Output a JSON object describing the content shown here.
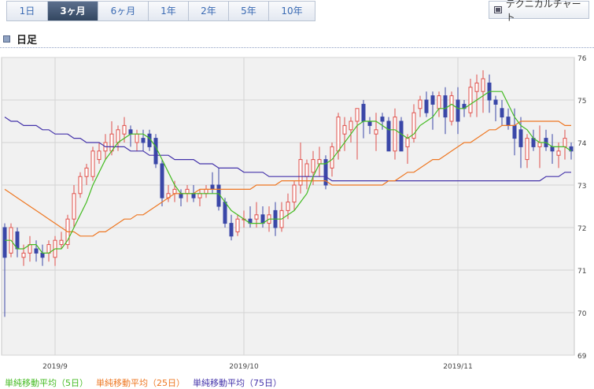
{
  "tabs": [
    {
      "label": "1日",
      "active": false
    },
    {
      "label": "3ヶ月",
      "active": true
    },
    {
      "label": "6ヶ月",
      "active": false
    },
    {
      "label": "1年",
      "active": false
    },
    {
      "label": "2年",
      "active": false
    },
    {
      "label": "5年",
      "active": false
    },
    {
      "label": "10年",
      "active": false
    }
  ],
  "technical_chart_label": "テクニカルチャート",
  "period_label": "日足",
  "legend": [
    {
      "label": "単純移動平均（5日）",
      "color": "#44bb22"
    },
    {
      "label": "単純移動平均（25日）",
      "color": "#ee7722"
    },
    {
      "label": "単純移動平均（75日）",
      "color": "#4433aa"
    }
  ],
  "colors": {
    "up": "#e0504a",
    "down": "#3a47a8",
    "plot_bg": "#f1f1f1",
    "grid": "#d4d4d4"
  },
  "chart_data": {
    "type": "candlestick",
    "y_axis": {
      "min": 69,
      "max": 76,
      "ticks": [
        76,
        75,
        74,
        73,
        72,
        71,
        70,
        69
      ],
      "side": "right"
    },
    "x_labels": [
      {
        "index": 8,
        "label": "2019/9"
      },
      {
        "index": 38,
        "label": "2019/10"
      },
      {
        "index": 72,
        "label": "2019/11"
      }
    ],
    "candles": [
      [
        72.0,
        72.1,
        69.9,
        71.3
      ],
      [
        71.4,
        72.1,
        71.3,
        72.0
      ],
      [
        71.9,
        72.0,
        71.3,
        71.5
      ],
      [
        71.3,
        71.6,
        71.1,
        71.4
      ],
      [
        71.4,
        71.8,
        71.2,
        71.6
      ],
      [
        71.5,
        71.7,
        71.2,
        71.4
      ],
      [
        71.4,
        71.6,
        71.1,
        71.3
      ],
      [
        71.4,
        71.7,
        71.2,
        71.6
      ],
      [
        71.3,
        71.8,
        71.1,
        71.7
      ],
      [
        71.6,
        71.9,
        71.5,
        71.7
      ],
      [
        71.6,
        72.3,
        71.5,
        72.2
      ],
      [
        72.2,
        73.0,
        72.0,
        72.8
      ],
      [
        72.8,
        73.3,
        72.7,
        73.2
      ],
      [
        73.2,
        73.5,
        73.0,
        73.4
      ],
      [
        73.2,
        73.9,
        73.1,
        73.8
      ],
      [
        73.6,
        74.0,
        73.5,
        73.8
      ],
      [
        73.8,
        74.2,
        73.6,
        74.0
      ],
      [
        73.8,
        74.5,
        73.7,
        74.2
      ],
      [
        74.0,
        74.4,
        73.8,
        74.3
      ],
      [
        74.2,
        74.6,
        74.0,
        74.4
      ],
      [
        74.3,
        74.4,
        73.9,
        74.2
      ],
      [
        74.0,
        74.3,
        73.8,
        74.2
      ],
      [
        74.1,
        74.3,
        73.8,
        74.0
      ],
      [
        74.2,
        74.3,
        73.8,
        73.9
      ],
      [
        74.1,
        74.2,
        73.4,
        73.5
      ],
      [
        73.5,
        73.6,
        72.5,
        72.7
      ],
      [
        72.7,
        73.0,
        72.6,
        72.8
      ],
      [
        72.8,
        73.1,
        72.6,
        72.9
      ],
      [
        72.8,
        72.9,
        72.5,
        72.7
      ],
      [
        72.8,
        73.0,
        72.6,
        72.9
      ],
      [
        72.8,
        73.0,
        72.6,
        72.7
      ],
      [
        72.7,
        72.9,
        72.5,
        72.8
      ],
      [
        72.8,
        73.0,
        72.7,
        72.9
      ],
      [
        73.0,
        73.3,
        72.8,
        72.9
      ],
      [
        73.0,
        73.4,
        72.4,
        72.5
      ],
      [
        72.6,
        72.7,
        72.0,
        72.1
      ],
      [
        72.1,
        72.3,
        71.7,
        71.8
      ],
      [
        71.9,
        72.3,
        71.8,
        72.2
      ],
      [
        72.2,
        72.4,
        72.0,
        72.2
      ],
      [
        72.2,
        72.5,
        72.0,
        72.1
      ],
      [
        72.2,
        72.6,
        72.0,
        72.3
      ],
      [
        72.3,
        72.5,
        72.0,
        72.1
      ],
      [
        72.1,
        72.5,
        71.9,
        72.3
      ],
      [
        72.4,
        72.6,
        71.8,
        72.0
      ],
      [
        72.0,
        72.6,
        71.9,
        72.4
      ],
      [
        72.4,
        72.8,
        72.2,
        72.6
      ],
      [
        72.6,
        73.1,
        72.4,
        73.0
      ],
      [
        73.0,
        74.0,
        72.8,
        73.6
      ],
      [
        73.2,
        73.6,
        72.9,
        73.5
      ],
      [
        73.3,
        73.8,
        73.0,
        73.6
      ],
      [
        73.5,
        73.9,
        73.2,
        73.6
      ],
      [
        73.6,
        73.7,
        72.9,
        73.0
      ],
      [
        73.4,
        74.0,
        73.2,
        73.9
      ],
      [
        73.8,
        74.7,
        73.6,
        74.6
      ],
      [
        74.2,
        74.6,
        73.8,
        74.4
      ],
      [
        74.3,
        74.6,
        74.0,
        74.5
      ],
      [
        74.5,
        74.8,
        73.6,
        74.8
      ],
      [
        74.9,
        75.0,
        74.1,
        74.5
      ],
      [
        74.5,
        74.6,
        74.2,
        74.4
      ],
      [
        74.2,
        74.7,
        73.8,
        74.3
      ],
      [
        74.6,
        74.7,
        74.3,
        74.5
      ],
      [
        74.5,
        74.6,
        73.8,
        73.8
      ],
      [
        73.8,
        74.8,
        73.6,
        74.6
      ],
      [
        74.5,
        74.6,
        73.8,
        73.8
      ],
      [
        73.9,
        74.2,
        73.5,
        74.1
      ],
      [
        74.1,
        74.9,
        74.0,
        74.7
      ],
      [
        74.8,
        75.1,
        74.6,
        75.0
      ],
      [
        75.0,
        75.2,
        74.6,
        74.7
      ],
      [
        75.1,
        75.2,
        74.3,
        74.9
      ],
      [
        74.8,
        75.2,
        74.6,
        75.1
      ],
      [
        75.1,
        75.3,
        74.2,
        74.6
      ],
      [
        74.5,
        75.2,
        74.4,
        75.1
      ],
      [
        75.0,
        75.3,
        74.2,
        74.5
      ],
      [
        74.9,
        75.0,
        74.6,
        74.8
      ],
      [
        74.7,
        75.5,
        74.6,
        75.3
      ],
      [
        75.2,
        75.6,
        74.6,
        75.4
      ],
      [
        75.2,
        75.7,
        74.7,
        75.5
      ],
      [
        75.4,
        75.6,
        74.7,
        75.0
      ],
      [
        75.0,
        75.1,
        74.5,
        74.9
      ],
      [
        74.8,
        75.0,
        74.4,
        74.6
      ],
      [
        74.6,
        74.8,
        74.3,
        74.4
      ],
      [
        74.4,
        74.8,
        73.7,
        74.1
      ],
      [
        74.3,
        74.6,
        73.4,
        73.9
      ],
      [
        73.6,
        74.2,
        73.4,
        74.1
      ],
      [
        74.1,
        74.3,
        73.8,
        73.9
      ],
      [
        73.9,
        74.4,
        73.4,
        74.0
      ],
      [
        74.1,
        74.3,
        73.8,
        73.9
      ],
      [
        73.9,
        74.2,
        73.5,
        73.8
      ],
      [
        73.7,
        74.0,
        73.4,
        73.8
      ],
      [
        73.9,
        74.3,
        73.6,
        74.1
      ],
      [
        73.9,
        74.0,
        73.6,
        73.8
      ]
    ],
    "ma5": [
      71.7,
      71.7,
      71.5,
      71.5,
      71.6,
      71.6,
      71.4,
      71.4,
      71.5,
      71.5,
      71.7,
      72.0,
      72.3,
      72.6,
      73.0,
      73.3,
      73.6,
      73.8,
      74.0,
      74.1,
      74.2,
      74.2,
      74.2,
      74.1,
      73.9,
      73.6,
      73.3,
      73.0,
      72.8,
      72.8,
      72.8,
      72.8,
      72.8,
      72.8,
      72.8,
      72.6,
      72.4,
      72.3,
      72.2,
      72.1,
      72.1,
      72.1,
      72.2,
      72.2,
      72.2,
      72.3,
      72.4,
      72.6,
      72.8,
      73.2,
      73.5,
      73.5,
      73.6,
      73.8,
      74.0,
      74.2,
      74.4,
      74.5,
      74.5,
      74.5,
      74.4,
      74.3,
      74.3,
      74.2,
      74.1,
      74.2,
      74.4,
      74.5,
      74.6,
      74.8,
      74.8,
      74.9,
      74.8,
      74.8,
      74.9,
      75.0,
      75.1,
      75.2,
      75.2,
      75.2,
      74.9,
      74.6,
      74.4,
      74.3,
      74.1,
      74.0,
      74.0,
      73.9,
      73.9,
      73.9,
      73.8
    ],
    "ma25": [
      72.9,
      72.8,
      72.7,
      72.6,
      72.5,
      72.4,
      72.3,
      72.2,
      72.1,
      72.0,
      71.9,
      71.9,
      71.8,
      71.8,
      71.8,
      71.9,
      71.9,
      72.0,
      72.1,
      72.2,
      72.2,
      72.3,
      72.3,
      72.4,
      72.5,
      72.6,
      72.7,
      72.8,
      72.8,
      72.8,
      72.8,
      72.9,
      72.9,
      72.9,
      72.9,
      72.9,
      72.9,
      72.9,
      72.9,
      72.9,
      73.0,
      73.0,
      73.0,
      73.0,
      73.1,
      73.1,
      73.1,
      73.1,
      73.1,
      73.1,
      73.1,
      73.1,
      73.0,
      73.0,
      73.0,
      73.0,
      73.0,
      73.0,
      73.0,
      73.0,
      73.0,
      73.1,
      73.1,
      73.2,
      73.3,
      73.3,
      73.4,
      73.5,
      73.6,
      73.6,
      73.7,
      73.8,
      73.9,
      74.0,
      74.0,
      74.1,
      74.2,
      74.3,
      74.3,
      74.4,
      74.4,
      74.4,
      74.5,
      74.5,
      74.5,
      74.5,
      74.5,
      74.5,
      74.5,
      74.4,
      74.4
    ],
    "ma75": [
      74.6,
      74.5,
      74.5,
      74.4,
      74.4,
      74.4,
      74.3,
      74.3,
      74.2,
      74.2,
      74.2,
      74.1,
      74.1,
      74.0,
      74.0,
      74.0,
      73.9,
      73.9,
      73.9,
      73.9,
      73.8,
      73.8,
      73.8,
      73.7,
      73.7,
      73.7,
      73.7,
      73.6,
      73.6,
      73.6,
      73.6,
      73.5,
      73.5,
      73.5,
      73.4,
      73.4,
      73.4,
      73.4,
      73.3,
      73.3,
      73.3,
      73.3,
      73.2,
      73.2,
      73.2,
      73.2,
      73.2,
      73.2,
      73.2,
      73.2,
      73.2,
      73.2,
      73.1,
      73.1,
      73.1,
      73.1,
      73.1,
      73.1,
      73.1,
      73.1,
      73.1,
      73.1,
      73.1,
      73.1,
      73.1,
      73.1,
      73.1,
      73.1,
      73.1,
      73.1,
      73.1,
      73.1,
      73.1,
      73.1,
      73.1,
      73.1,
      73.1,
      73.1,
      73.1,
      73.1,
      73.1,
      73.1,
      73.1,
      73.1,
      73.1,
      73.1,
      73.2,
      73.2,
      73.2,
      73.3,
      73.3
    ]
  }
}
